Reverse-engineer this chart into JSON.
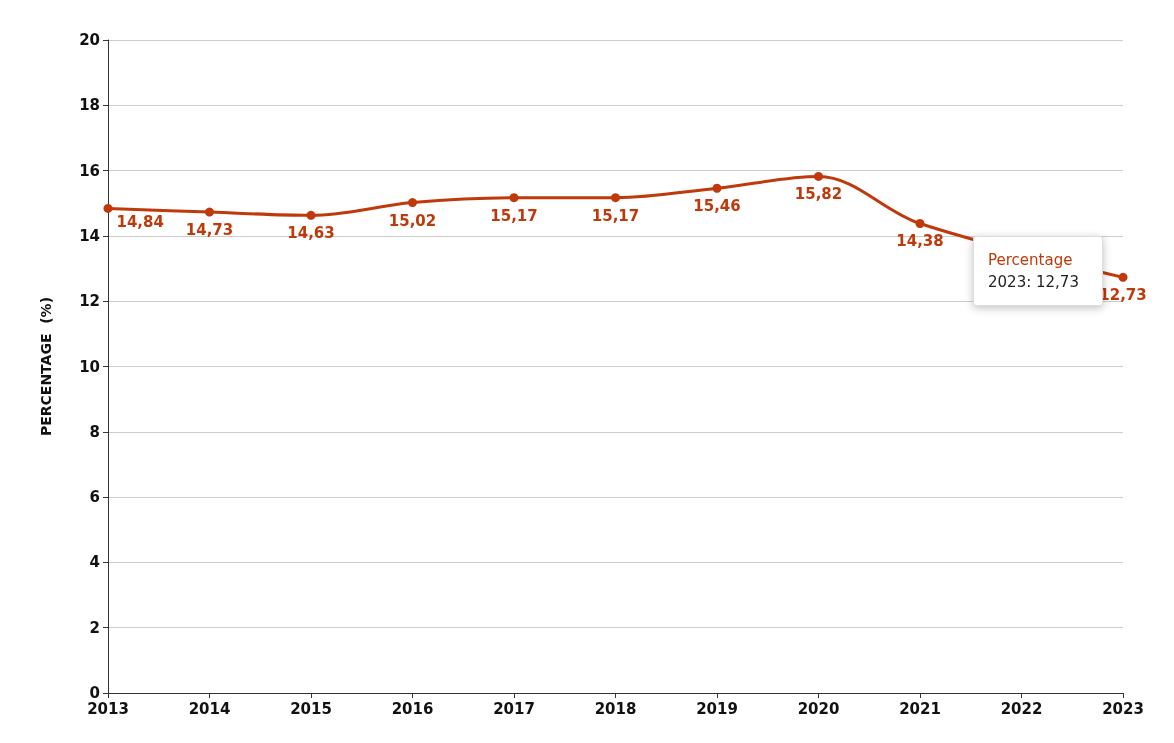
{
  "chart_data": {
    "type": "line",
    "ylabel": "PERCENTAGE  (%)",
    "categories": [
      "2013",
      "2014",
      "2015",
      "2016",
      "2017",
      "2018",
      "2019",
      "2020",
      "2021",
      "2022",
      "2023"
    ],
    "series": [
      {
        "color": "#c0390b",
        "values": [
          14.84,
          14.73,
          14.63,
          15.02,
          15.17,
          15.17,
          15.46,
          15.82,
          14.38,
          null,
          12.73
        ],
        "value_labels": [
          "14,84",
          "14,73",
          "14,63",
          "15,02",
          "15,17",
          "15,17",
          "15,46",
          "15,82",
          "14,38",
          null,
          "12,73"
        ]
      }
    ],
    "ylim": [
      0,
      20
    ],
    "yticks": [
      0,
      2,
      4,
      6,
      8,
      10,
      12,
      14,
      16,
      18,
      20
    ],
    "grid": "y",
    "marker": "circle",
    "line_style": "solid",
    "annotations": [
      "Percentage",
      "2023: 12,73"
    ]
  }
}
